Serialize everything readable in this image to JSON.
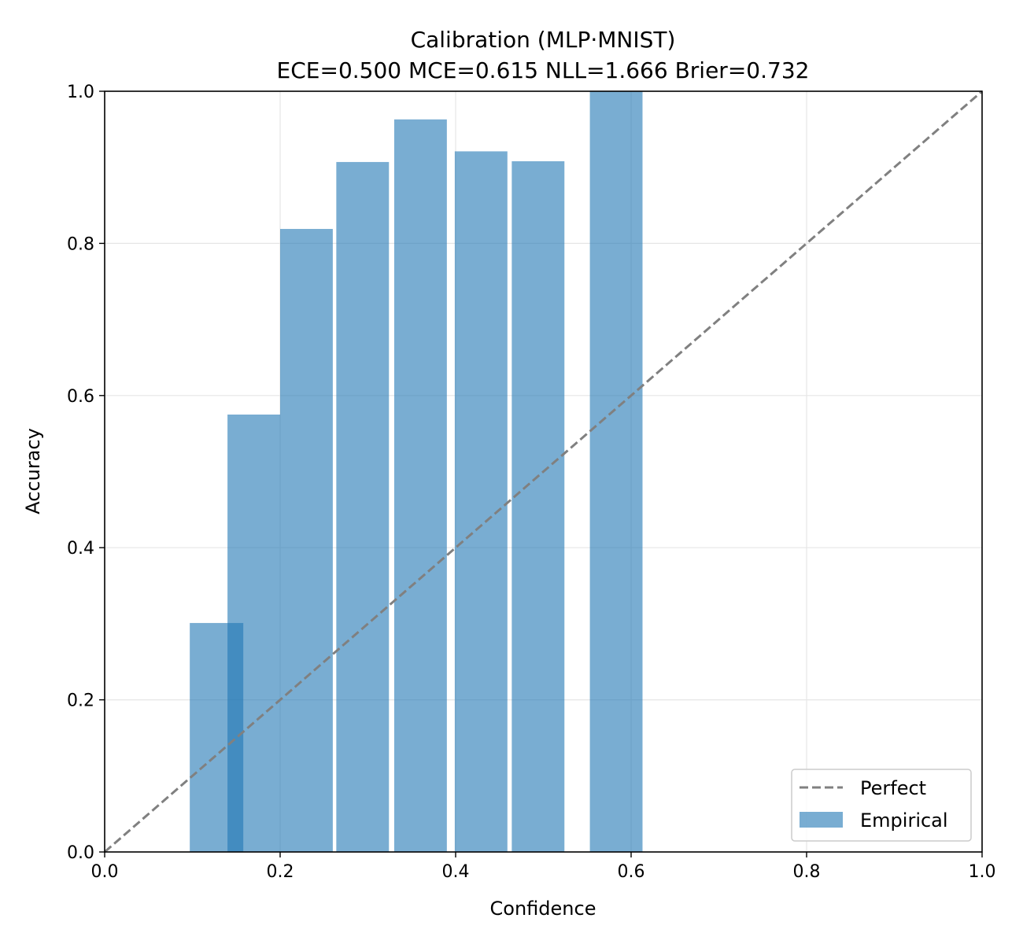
{
  "chart_data": {
    "type": "bar",
    "title": "Calibration (MLP·MNIST)",
    "subtitle": "ECE=0.500  MCE=0.615  NLL=1.666  Brier=0.732",
    "xlabel": "Confidence",
    "ylabel": "Accuracy",
    "xlim": [
      0.0,
      1.0
    ],
    "ylim": [
      0.0,
      1.0
    ],
    "xticks": [
      "0.0",
      "0.2",
      "0.4",
      "0.6",
      "0.8",
      "1.0"
    ],
    "yticks": [
      "0.0",
      "0.2",
      "0.4",
      "0.6",
      "0.8",
      "1.0"
    ],
    "grid": true,
    "legend_position": "lower-right",
    "series": [
      {
        "name": "Empirical",
        "type": "bar",
        "color": "#1f77b4",
        "opacity": 0.6,
        "bars": [
          {
            "left": 0.097,
            "right": 0.158,
            "accuracy": 0.301
          },
          {
            "left": 0.14,
            "right": 0.2,
            "accuracy": 0.575
          },
          {
            "left": 0.2,
            "right": 0.26,
            "accuracy": 0.819
          },
          {
            "left": 0.264,
            "right": 0.324,
            "accuracy": 0.907
          },
          {
            "left": 0.33,
            "right": 0.39,
            "accuracy": 0.963
          },
          {
            "left": 0.399,
            "right": 0.459,
            "accuracy": 0.921
          },
          {
            "left": 0.464,
            "right": 0.524,
            "accuracy": 0.908
          },
          {
            "left": 0.553,
            "right": 0.613,
            "accuracy": 1.0
          }
        ]
      },
      {
        "name": "Perfect",
        "type": "line",
        "style": "dashed",
        "color": "#808080",
        "points": [
          [
            0.0,
            0.0
          ],
          [
            1.0,
            1.0
          ]
        ]
      }
    ]
  }
}
